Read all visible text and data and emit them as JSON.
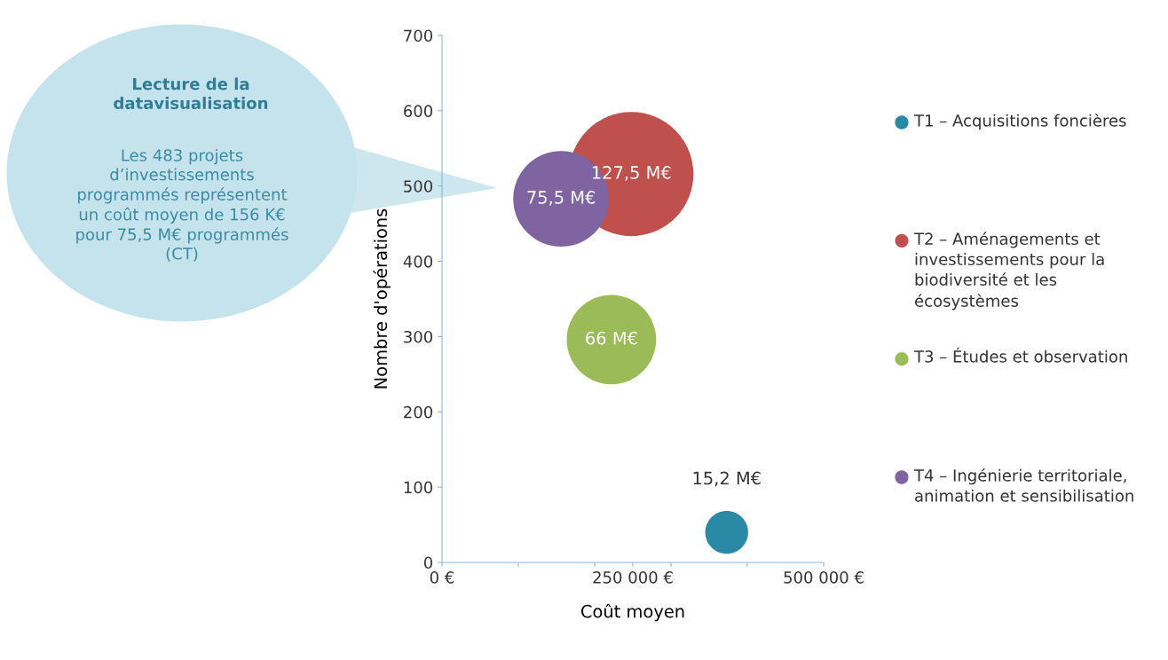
{
  "chart_data": {
    "type": "bubble",
    "xlabel": "Coût moyen",
    "ylabel": "Nombre d'opérations",
    "xlim": [
      0,
      500000
    ],
    "xticks": [
      {
        "value": 0,
        "label": "0 €"
      },
      {
        "value": 100000,
        "label": null
      },
      {
        "value": 200000,
        "label": null
      },
      {
        "value": 250000,
        "label": "250 000 €"
      },
      {
        "value": 300000,
        "label": null
      },
      {
        "value": 400000,
        "label": null
      },
      {
        "value": 500000,
        "label": "500 000 €"
      }
    ],
    "ylim": [
      0,
      700
    ],
    "yticks": [
      0,
      100,
      200,
      300,
      400,
      500,
      600,
      700
    ],
    "grid": false,
    "legend": "right",
    "marker": "circle",
    "annotations": [
      "Lecture de la\ndatavisualisation",
      "Les 483 projets\nd’investissements\nprogrammés représentent\nun coût moyen de 156 K€\npour 75,5 M€ programmés\n(CT)"
    ],
    "series": [
      {
        "name": "T1 – Acquisitions foncières",
        "color": "#2a8aa5",
        "x": [
          373000
        ],
        "values": [
          40
        ],
        "sizes": [
          15.2
        ],
        "value_labels": [
          "15,2 M€"
        ]
      },
      {
        "name": "T2 – Aménagements et\ninvestissements pour la\nbiodiversité et les\nécosystèmes",
        "color": "#c0504d",
        "x": [
          248000
        ],
        "values": [
          516
        ],
        "sizes": [
          127.5
        ],
        "value_labels": [
          "127,5 M€"
        ]
      },
      {
        "name": "T3 – Études et observation",
        "color": "#9bbb59",
        "x": [
          222000
        ],
        "values": [
          296
        ],
        "sizes": [
          66
        ],
        "value_labels": [
          "66 M€"
        ]
      },
      {
        "name": "T4 – Ingénierie territoriale,\nanimation et sensibilisation",
        "color": "#8064a2",
        "x": [
          156000
        ],
        "values": [
          483
        ],
        "sizes": [
          75.5
        ],
        "value_labels": [
          "75,5 M€"
        ]
      }
    ]
  }
}
